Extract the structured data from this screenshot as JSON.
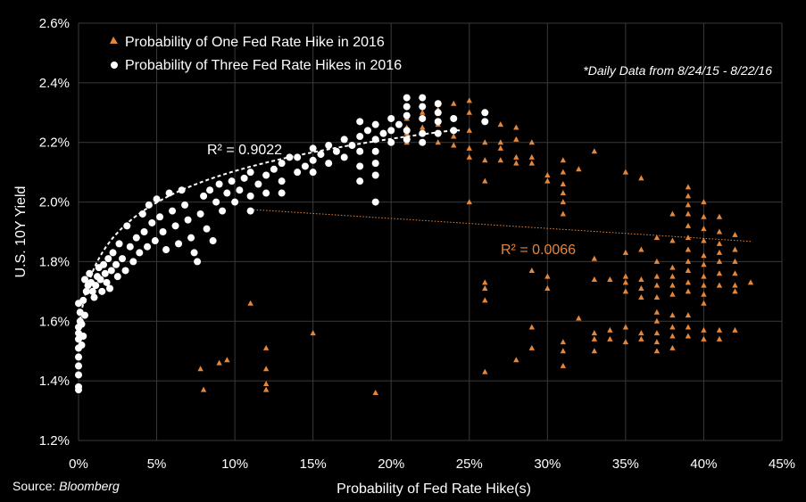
{
  "chart_data": {
    "type": "scatter",
    "xlabel": "Probability of Fed Rate Hike(s)",
    "ylabel": "U.S. 10Y Yield",
    "xlim": [
      0,
      45
    ],
    "ylim": [
      1.2,
      2.6
    ],
    "x_ticks": [
      "0%",
      "5%",
      "10%",
      "15%",
      "20%",
      "25%",
      "30%",
      "35%",
      "40%",
      "45%"
    ],
    "y_ticks": [
      "1.2%",
      "1.4%",
      "1.6%",
      "1.8%",
      "2.0%",
      "2.2%",
      "2.4%",
      "2.6%"
    ],
    "grid": true,
    "legend_position": "top-left",
    "note": "*Daily Data from 8/24/15 - 8/22/16",
    "source_label": "Source: ",
    "source_name": "Bloomberg",
    "colors": {
      "one_hike": "#e4863c",
      "three_hikes": "#ffffff",
      "background": "#000000",
      "grid": "#3a3a3a"
    },
    "series": [
      {
        "name": "Probability of One Fed Rate Hike in 2016",
        "marker": "triangle",
        "color": "#e4863c",
        "trendline": {
          "kind": "linear",
          "r2_label": "R² = 0.0066",
          "from": [
            11,
            1.975
          ],
          "to": [
            43,
            1.868
          ]
        },
        "points": [
          [
            7.8,
            1.44
          ],
          [
            8,
            1.37
          ],
          [
            9,
            1.46
          ],
          [
            9.5,
            1.47
          ],
          [
            11,
            1.66
          ],
          [
            12,
            1.51
          ],
          [
            12,
            1.44
          ],
          [
            12,
            1.39
          ],
          [
            12,
            1.37
          ],
          [
            15,
            1.56
          ],
          [
            19,
            1.36
          ],
          [
            21,
            2.28
          ],
          [
            21,
            2.25
          ],
          [
            21,
            2.23
          ],
          [
            21,
            2.2
          ],
          [
            22,
            2.3
          ],
          [
            22,
            2.25
          ],
          [
            22,
            2.2
          ],
          [
            23,
            2.31
          ],
          [
            23,
            2.26
          ],
          [
            23,
            2.2
          ],
          [
            24,
            2.33
          ],
          [
            24,
            2.28
          ],
          [
            24,
            2.22
          ],
          [
            24,
            2.19
          ],
          [
            25,
            2.34
          ],
          [
            25,
            2.3
          ],
          [
            25,
            2.24
          ],
          [
            25,
            2.18
          ],
          [
            25,
            2.15
          ],
          [
            25,
            2.0
          ],
          [
            26,
            2.2
          ],
          [
            26,
            2.14
          ],
          [
            26,
            2.07
          ],
          [
            26,
            1.73
          ],
          [
            26,
            1.71
          ],
          [
            26,
            1.67
          ],
          [
            26,
            1.43
          ],
          [
            27,
            2.26
          ],
          [
            27,
            2.2
          ],
          [
            27,
            2.18
          ],
          [
            27,
            2.14
          ],
          [
            28,
            2.25
          ],
          [
            28,
            2.21
          ],
          [
            28,
            2.15
          ],
          [
            28,
            2.13
          ],
          [
            28,
            1.47
          ],
          [
            29,
            2.2
          ],
          [
            29,
            2.15
          ],
          [
            29,
            2.13
          ],
          [
            29,
            1.77
          ],
          [
            29,
            1.58
          ],
          [
            29,
            1.51
          ],
          [
            30,
            2.09
          ],
          [
            30,
            2.07
          ],
          [
            30,
            1.75
          ],
          [
            30,
            1.71
          ],
          [
            31,
            2.14
          ],
          [
            31,
            2.1
          ],
          [
            31,
            2.06
          ],
          [
            31,
            2.03
          ],
          [
            31,
            2.0
          ],
          [
            31,
            1.96
          ],
          [
            31,
            1.53
          ],
          [
            31,
            1.5
          ],
          [
            31,
            1.45
          ],
          [
            32,
            2.11
          ],
          [
            32,
            1.61
          ],
          [
            33,
            2.17
          ],
          [
            33,
            1.81
          ],
          [
            33,
            1.74
          ],
          [
            33,
            1.56
          ],
          [
            33,
            1.54
          ],
          [
            33,
            1.5
          ],
          [
            34,
            1.74
          ],
          [
            34,
            1.57
          ],
          [
            34,
            1.54
          ],
          [
            35,
            2.1
          ],
          [
            35,
            1.83
          ],
          [
            35,
            1.75
          ],
          [
            35,
            1.73
          ],
          [
            35,
            1.7
          ],
          [
            35,
            1.58
          ],
          [
            35,
            1.53
          ],
          [
            36,
            2.08
          ],
          [
            36,
            1.84
          ],
          [
            36,
            1.74
          ],
          [
            36,
            1.71
          ],
          [
            36,
            1.68
          ],
          [
            36,
            1.56
          ],
          [
            36,
            1.54
          ],
          [
            37,
            1.88
          ],
          [
            37,
            1.8
          ],
          [
            37,
            1.75
          ],
          [
            37,
            1.72
          ],
          [
            37,
            1.68
          ],
          [
            37,
            1.63
          ],
          [
            37,
            1.6
          ],
          [
            37,
            1.56
          ],
          [
            37,
            1.53
          ],
          [
            37,
            1.5
          ],
          [
            38,
            1.96
          ],
          [
            38,
            1.87
          ],
          [
            38,
            1.78
          ],
          [
            38,
            1.75
          ],
          [
            38,
            1.72
          ],
          [
            38,
            1.69
          ],
          [
            38,
            1.62
          ],
          [
            38,
            1.58
          ],
          [
            38,
            1.55
          ],
          [
            38,
            1.51
          ],
          [
            39,
            2.05
          ],
          [
            39,
            2.02
          ],
          [
            39,
            1.99
          ],
          [
            39,
            1.96
          ],
          [
            39,
            1.92
          ],
          [
            39,
            1.88
          ],
          [
            39,
            1.84
          ],
          [
            39,
            1.8
          ],
          [
            39,
            1.77
          ],
          [
            39,
            1.73
          ],
          [
            39,
            1.7
          ],
          [
            39,
            1.62
          ],
          [
            39,
            1.58
          ],
          [
            39,
            1.55
          ],
          [
            40,
            2.0
          ],
          [
            40,
            1.95
          ],
          [
            40,
            1.91
          ],
          [
            40,
            1.87
          ],
          [
            40,
            1.82
          ],
          [
            40,
            1.79
          ],
          [
            40,
            1.75
          ],
          [
            40,
            1.72
          ],
          [
            40,
            1.69
          ],
          [
            40,
            1.66
          ],
          [
            40,
            1.57
          ],
          [
            40,
            1.54
          ],
          [
            41,
            1.95
          ],
          [
            41,
            1.9
          ],
          [
            41,
            1.86
          ],
          [
            41,
            1.83
          ],
          [
            41,
            1.8
          ],
          [
            41,
            1.76
          ],
          [
            41,
            1.72
          ],
          [
            41,
            1.57
          ],
          [
            41,
            1.54
          ],
          [
            42,
            1.89
          ],
          [
            42,
            1.84
          ],
          [
            42,
            1.8
          ],
          [
            42,
            1.76
          ],
          [
            42,
            1.72
          ],
          [
            42,
            1.7
          ],
          [
            42,
            1.57
          ],
          [
            43,
            1.73
          ]
        ]
      },
      {
        "name": "Probability of Three Fed Rate Hikes in 2016",
        "marker": "circle",
        "color": "#ffffff",
        "trendline": {
          "kind": "logarithmic",
          "r2_label": "R² = 0.9022",
          "a": 1.73,
          "b": 0.16
        },
        "points": [
          [
            0,
            1.37
          ],
          [
            0,
            1.38
          ],
          [
            0,
            1.42
          ],
          [
            0,
            1.45
          ],
          [
            0,
            1.48
          ],
          [
            0,
            1.51
          ],
          [
            0,
            1.54
          ],
          [
            0,
            1.56
          ],
          [
            0,
            1.58
          ],
          [
            0.1,
            1.6
          ],
          [
            0.1,
            1.63
          ],
          [
            0,
            1.66
          ],
          [
            0.2,
            1.52
          ],
          [
            0.3,
            1.55
          ],
          [
            0.2,
            1.59
          ],
          [
            0.4,
            1.62
          ],
          [
            0.3,
            1.67
          ],
          [
            0.5,
            1.7
          ],
          [
            0.6,
            1.72
          ],
          [
            0.4,
            1.74
          ],
          [
            0.7,
            1.76
          ],
          [
            0.8,
            1.73
          ],
          [
            0.9,
            1.7
          ],
          [
            1,
            1.68
          ],
          [
            1.1,
            1.72
          ],
          [
            1.2,
            1.75
          ],
          [
            1.3,
            1.78
          ],
          [
            1.4,
            1.74
          ],
          [
            1.5,
            1.7
          ],
          [
            1.6,
            1.79
          ],
          [
            1.7,
            1.76
          ],
          [
            1.8,
            1.73
          ],
          [
            1.9,
            1.81
          ],
          [
            2,
            1.71
          ],
          [
            2.1,
            1.77
          ],
          [
            2.2,
            1.83
          ],
          [
            2.4,
            1.79
          ],
          [
            2.5,
            1.75
          ],
          [
            2.6,
            1.86
          ],
          [
            2.8,
            1.81
          ],
          [
            3,
            1.77
          ],
          [
            3.1,
            1.92
          ],
          [
            3.3,
            1.85
          ],
          [
            3.5,
            1.8
          ],
          [
            3.7,
            1.88
          ],
          [
            3.9,
            1.83
          ],
          [
            4.1,
            1.96
          ],
          [
            4.2,
            1.9
          ],
          [
            4.4,
            1.85
          ],
          [
            4.5,
            1.99
          ],
          [
            4.7,
            1.93
          ],
          [
            4.9,
            1.87
          ],
          [
            5,
            2.01
          ],
          [
            5.2,
            1.95
          ],
          [
            5.4,
            1.9
          ],
          [
            5.6,
            1.84
          ],
          [
            5.8,
            2.03
          ],
          [
            6,
            1.97
          ],
          [
            6.2,
            1.92
          ],
          [
            6.4,
            1.86
          ],
          [
            6.6,
            2.04
          ],
          [
            6.8,
            1.99
          ],
          [
            7,
            1.94
          ],
          [
            7.2,
            1.88
          ],
          [
            7.4,
            1.83
          ],
          [
            7.6,
            1.8
          ],
          [
            7.8,
            1.96
          ],
          [
            8,
            2.02
          ],
          [
            8.2,
            1.91
          ],
          [
            8.4,
            2.04
          ],
          [
            8.6,
            1.87
          ],
          [
            8.8,
            2.0
          ],
          [
            9,
            2.06
          ],
          [
            9.2,
            1.97
          ],
          [
            9.5,
            2.03
          ],
          [
            9.8,
            2.07
          ],
          [
            10,
            2.0
          ],
          [
            10.3,
            2.04
          ],
          [
            10.6,
            2.08
          ],
          [
            11,
            2.02
          ],
          [
            11,
            2.1
          ],
          [
            11,
            1.97
          ],
          [
            11.5,
            2.06
          ],
          [
            12,
            2.09
          ],
          [
            12,
            2.03
          ],
          [
            12.5,
            2.11
          ],
          [
            13,
            2.07
          ],
          [
            13,
            2.13
          ],
          [
            13,
            2.03
          ],
          [
            13.5,
            2.15
          ],
          [
            14,
            2.1
          ],
          [
            14,
            2.15
          ],
          [
            14.5,
            2.12
          ],
          [
            15,
            2.18
          ],
          [
            15,
            2.14
          ],
          [
            15,
            2.1
          ],
          [
            15.5,
            2.16
          ],
          [
            16,
            2.13
          ],
          [
            16,
            2.19
          ],
          [
            16.5,
            2.17
          ],
          [
            17,
            2.21
          ],
          [
            17,
            2.15
          ],
          [
            17.5,
            2.19
          ],
          [
            18,
            2.27
          ],
          [
            18,
            2.22
          ],
          [
            18,
            2.17
          ],
          [
            18,
            2.12
          ],
          [
            18,
            2.07
          ],
          [
            18.5,
            2.24
          ],
          [
            19,
            2.26
          ],
          [
            19,
            2.21
          ],
          [
            19,
            2.17
          ],
          [
            19,
            2.13
          ],
          [
            19,
            2.09
          ],
          [
            19,
            2.0
          ],
          [
            19.5,
            2.23
          ],
          [
            20,
            2.28
          ],
          [
            20,
            2.24
          ],
          [
            20,
            2.2
          ],
          [
            20.5,
            2.26
          ],
          [
            21,
            2.35
          ],
          [
            21,
            2.32
          ],
          [
            21,
            2.29
          ],
          [
            21,
            2.24
          ],
          [
            21,
            2.21
          ],
          [
            22,
            2.35
          ],
          [
            22,
            2.32
          ],
          [
            22,
            2.28
          ],
          [
            22,
            2.23
          ],
          [
            22,
            2.2
          ],
          [
            23,
            2.33
          ],
          [
            23,
            2.3
          ],
          [
            23,
            2.27
          ],
          [
            23,
            2.23
          ],
          [
            24,
            2.28
          ],
          [
            24,
            2.24
          ],
          [
            26,
            2.3
          ],
          [
            26,
            2.27
          ]
        ]
      }
    ]
  }
}
